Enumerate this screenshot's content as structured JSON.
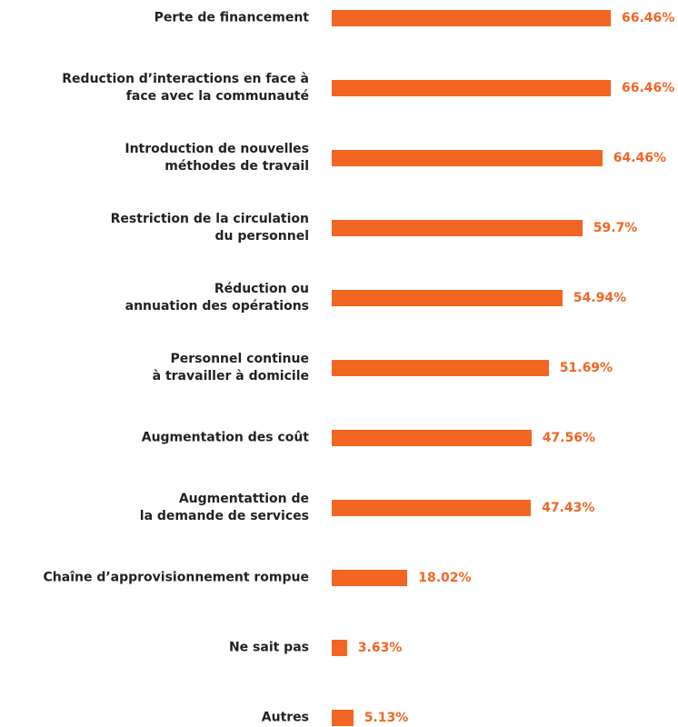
{
  "chart_data": {
    "type": "bar",
    "orientation": "horizontal",
    "categories": [
      "Perte de financement",
      "Reduction d’interactions en face à\nface avec la communauté",
      "Introduction de nouvelles\nméthodes de travail",
      "Restriction de la circulation\ndu personnel",
      "Réduction ou\nannuation des opérations",
      "Personnel continue\nà travailler à domicile",
      "Augmentation des coût",
      "Augmentattion de\nla demande de services",
      "Chaîne d’approvisionnement rompue",
      "Ne sait pas",
      "Autres"
    ],
    "values": [
      66.46,
      66.46,
      64.46,
      59.7,
      54.94,
      51.69,
      47.56,
      47.43,
      18.02,
      3.63,
      5.13
    ],
    "value_labels": [
      "66.46%",
      "66.46%",
      "64.46%",
      "59.7%",
      "54.94%",
      "51.69%",
      "47.56%",
      "47.43%",
      "18.02%",
      "3.63%",
      "5.13%"
    ],
    "color": "#f26522"
  }
}
